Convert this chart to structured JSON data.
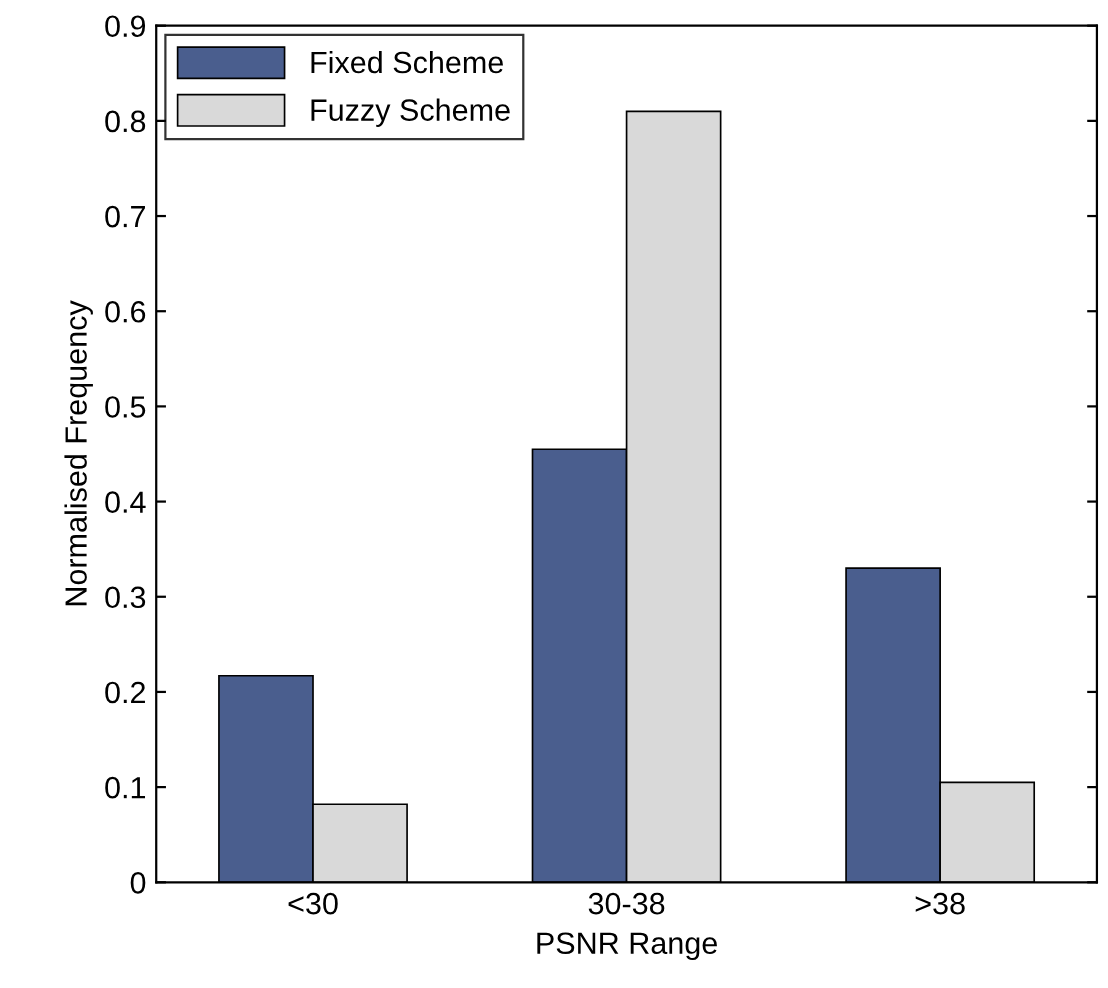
{
  "chart_data": {
    "type": "bar",
    "xlabel": "PSNR Range",
    "ylabel": "Normalised Frequency",
    "categories": [
      "<30",
      "30-38",
      ">38"
    ],
    "series": [
      {
        "name": "Fixed Scheme",
        "color": "#4a5e8e",
        "values": [
          0.217,
          0.455,
          0.33
        ]
      },
      {
        "name": "Fuzzy Scheme",
        "color": "#d9d9d9",
        "values": [
          0.082,
          0.81,
          0.105
        ]
      }
    ],
    "ylim": [
      0,
      0.9
    ],
    "yticks": [
      0,
      0.1,
      0.2,
      0.3,
      0.4,
      0.5,
      0.6,
      0.7,
      0.8,
      0.9
    ],
    "legend": "top left",
    "grid": false
  }
}
